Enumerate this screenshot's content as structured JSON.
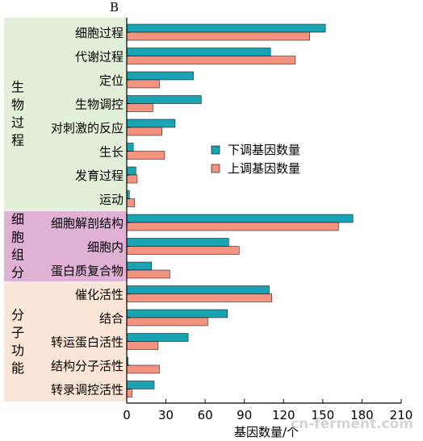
{
  "panel_label": "B",
  "colors": {
    "down": "#1aa3b3",
    "up": "#f4937f",
    "group_bio": "#e2f0d9",
    "group_cell": "#e0b0d5",
    "group_func": "#fbe5d6",
    "axis": "#000000"
  },
  "legend": {
    "down_label": "下调基因数量",
    "up_label": "上调基因数量",
    "placement": "middle-right"
  },
  "watermark": "cn-ferment.com",
  "chart_data": {
    "type": "bar",
    "orientation": "horizontal",
    "xlabel": "基因数量/个",
    "xlim": [
      0,
      210
    ],
    "xticks": [
      0,
      30,
      60,
      90,
      120,
      150,
      180,
      210
    ],
    "xtick_labels": [
      "0",
      "30",
      "60",
      "90",
      "120",
      "150",
      "180",
      "210"
    ],
    "grid": false,
    "groups": [
      {
        "name": "生物过程",
        "color_key": "group_bio",
        "categories": [
          "细胞过程",
          "代谢过程",
          "定位",
          "生物调控",
          "对刺激的反应",
          "生长",
          "发育过程",
          "运动"
        ]
      },
      {
        "name": "细胞组分",
        "color_key": "group_cell",
        "categories": [
          "细胞解剖结构",
          "细胞内",
          "蛋白质复合物"
        ]
      },
      {
        "name": "分子功能",
        "color_key": "group_func",
        "categories": [
          "催化活性",
          "结合",
          "转运蛋白活性",
          "结构分子活性",
          "转录调控活性"
        ]
      }
    ],
    "categories": [
      "细胞过程",
      "代谢过程",
      "定位",
      "生物调控",
      "对刺激的反应",
      "生长",
      "发育过程",
      "运动",
      "细胞解剖结构",
      "细胞内",
      "蛋白质复合物",
      "催化活性",
      "结合",
      "转运蛋白活性",
      "结构分子活性",
      "转录调控活性"
    ],
    "series": [
      {
        "name": "下调基因数量",
        "color_key": "down",
        "values": [
          152,
          110,
          51,
          57,
          37,
          5,
          7,
          2,
          173,
          78,
          19,
          109,
          77,
          47,
          1,
          21
        ]
      },
      {
        "name": "上调基因数量",
        "color_key": "up",
        "values": [
          140,
          129,
          25,
          20,
          27,
          29,
          8,
          6,
          162,
          86,
          33,
          111,
          62,
          24,
          25,
          4
        ]
      }
    ]
  }
}
